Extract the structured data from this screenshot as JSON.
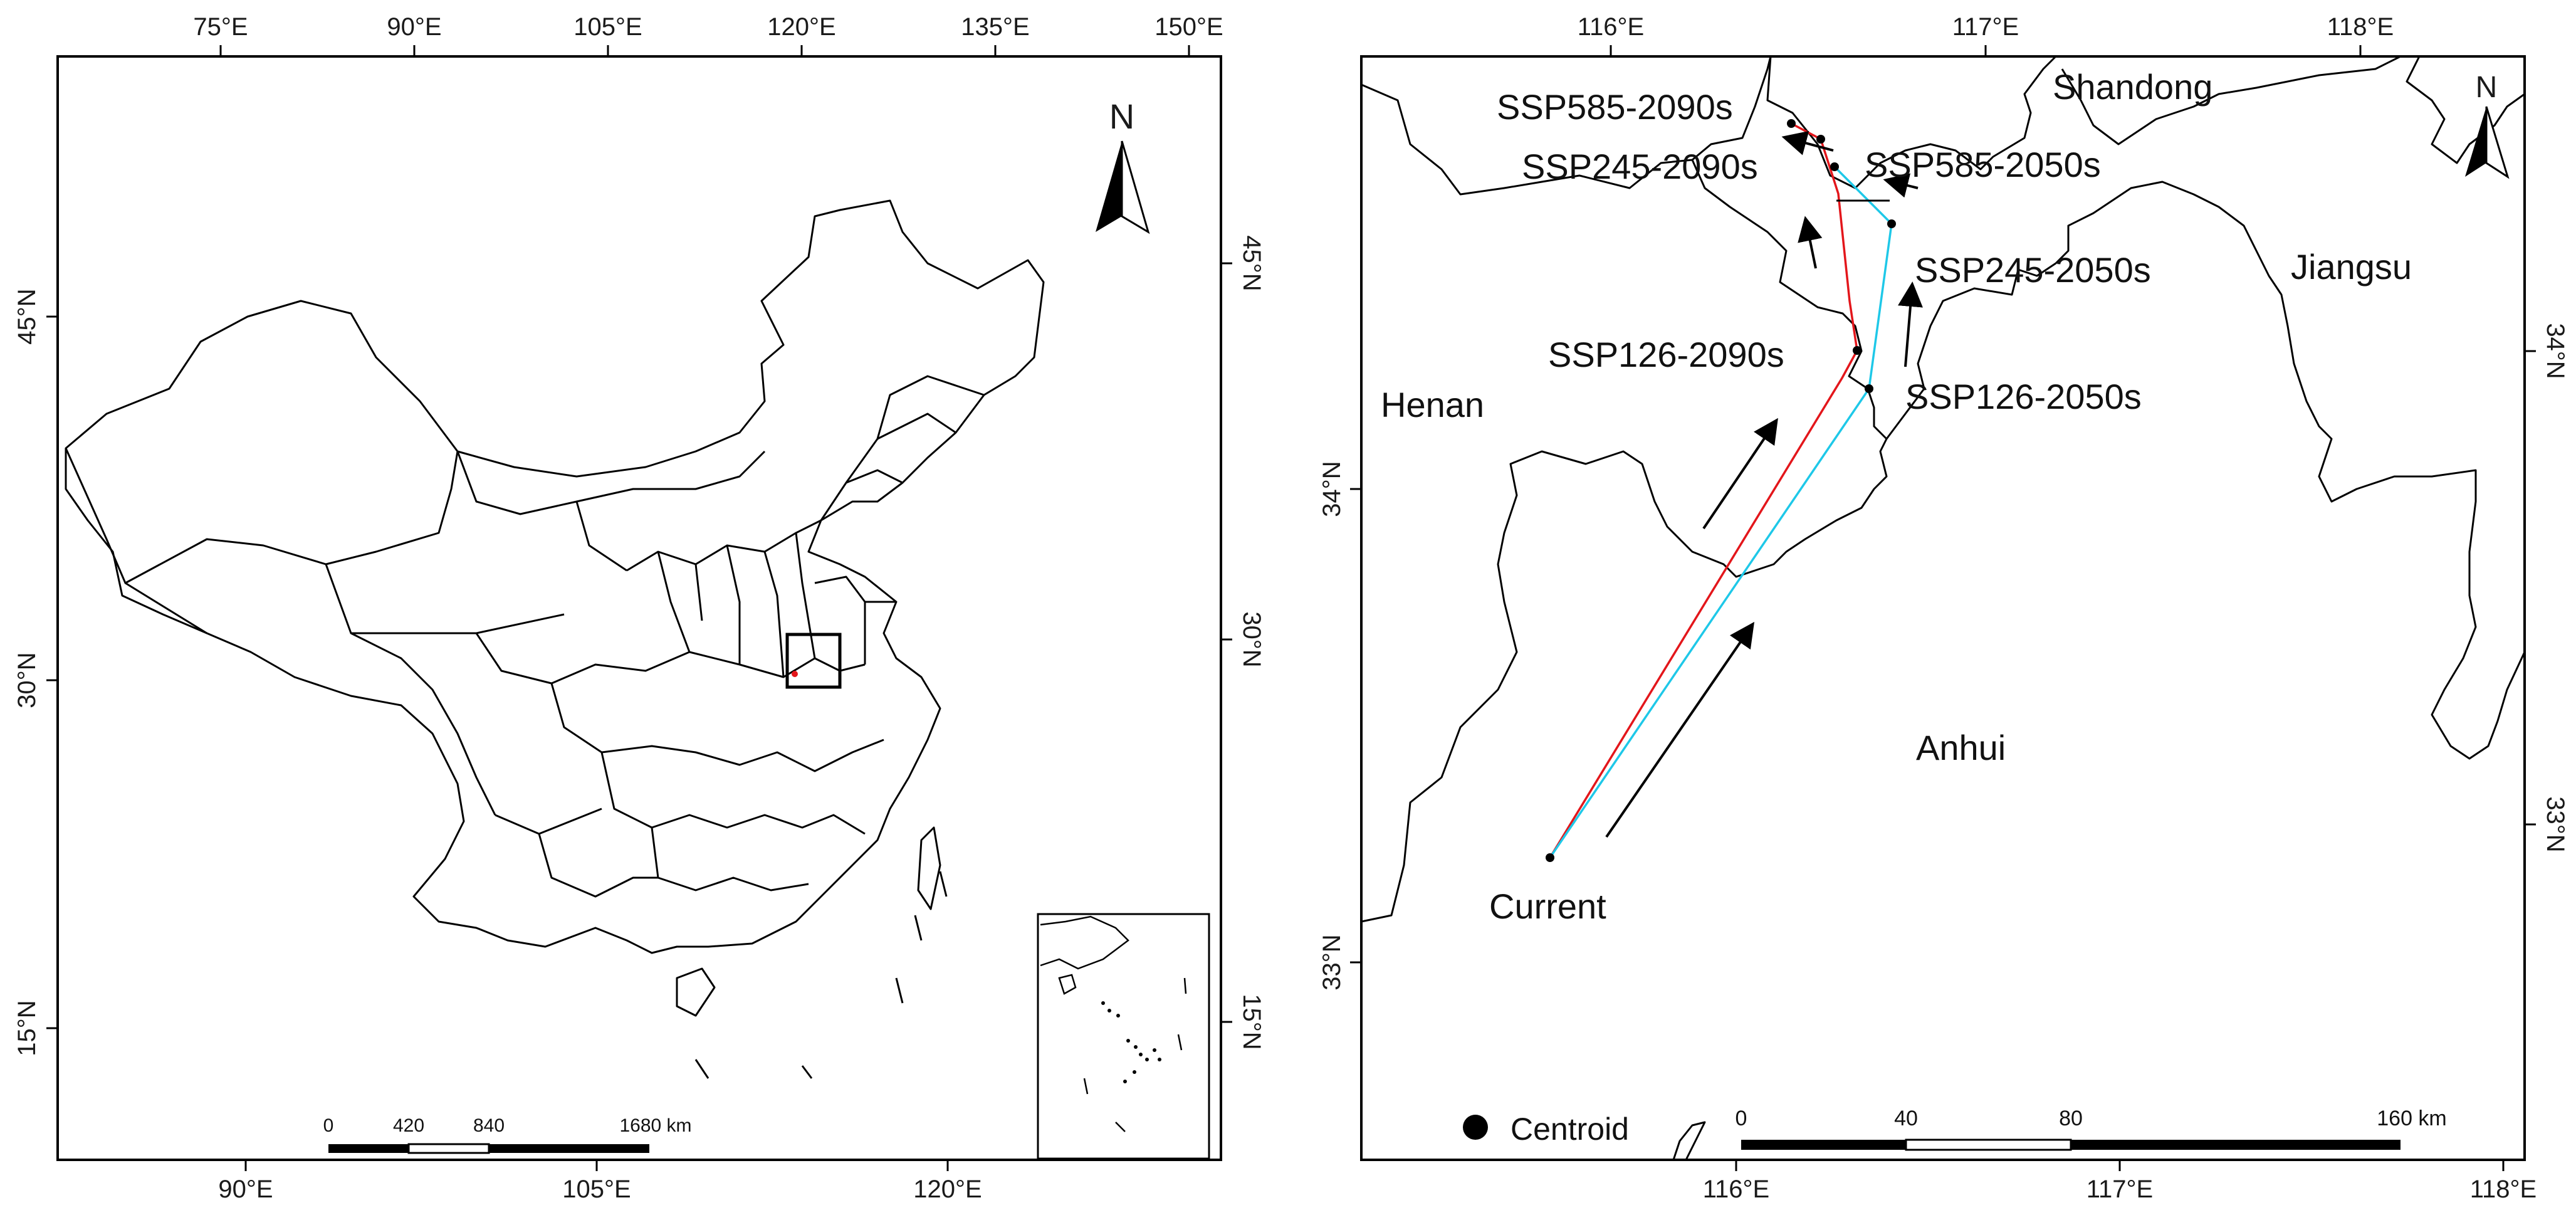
{
  "left_panel": {
    "top_ticks": [
      "75°E",
      "90°E",
      "105°E",
      "120°E",
      "135°E",
      "150°E"
    ],
    "bottom_ticks": [
      "90°E",
      "105°E",
      "120°E"
    ],
    "left_ticks": [
      "45°N",
      "30°N",
      "15°N"
    ],
    "right_ticks": [
      "45°N",
      "30°N",
      "15°N"
    ],
    "north_label": "N",
    "scale": {
      "ticks": [
        "0",
        "420",
        "840",
        "1680 km"
      ]
    }
  },
  "right_panel": {
    "top_ticks": [
      "116°E",
      "117°E",
      "118°E"
    ],
    "bottom_ticks": [
      "116°E",
      "117°E",
      "118°E"
    ],
    "left_ticks": [
      "34°N",
      "33°N"
    ],
    "right_ticks": [
      "34°N",
      "33°N"
    ],
    "north_label": "N",
    "regions": {
      "shandong": "Shandong",
      "jiangsu": "Jiangsu",
      "henan": "Henan",
      "anhui": "Anhui"
    },
    "scenarios": {
      "current": "Current",
      "ssp126_2050": "SSP126-2050s",
      "ssp245_2050": "SSP245-2050s",
      "ssp585_2050": "SSP585-2050s",
      "ssp126_2090": "SSP126-2090s",
      "ssp245_2090": "SSP245-2090s",
      "ssp585_2090": "SSP585-2090s"
    },
    "legend": {
      "centroid": "Centroid"
    },
    "scale": {
      "ticks": [
        "0",
        "40",
        "80",
        "160 km"
      ]
    },
    "colors": {
      "path_2090s": "#e3161b",
      "path_2050s": "#1ec8e8",
      "boundary": "#000000"
    }
  }
}
